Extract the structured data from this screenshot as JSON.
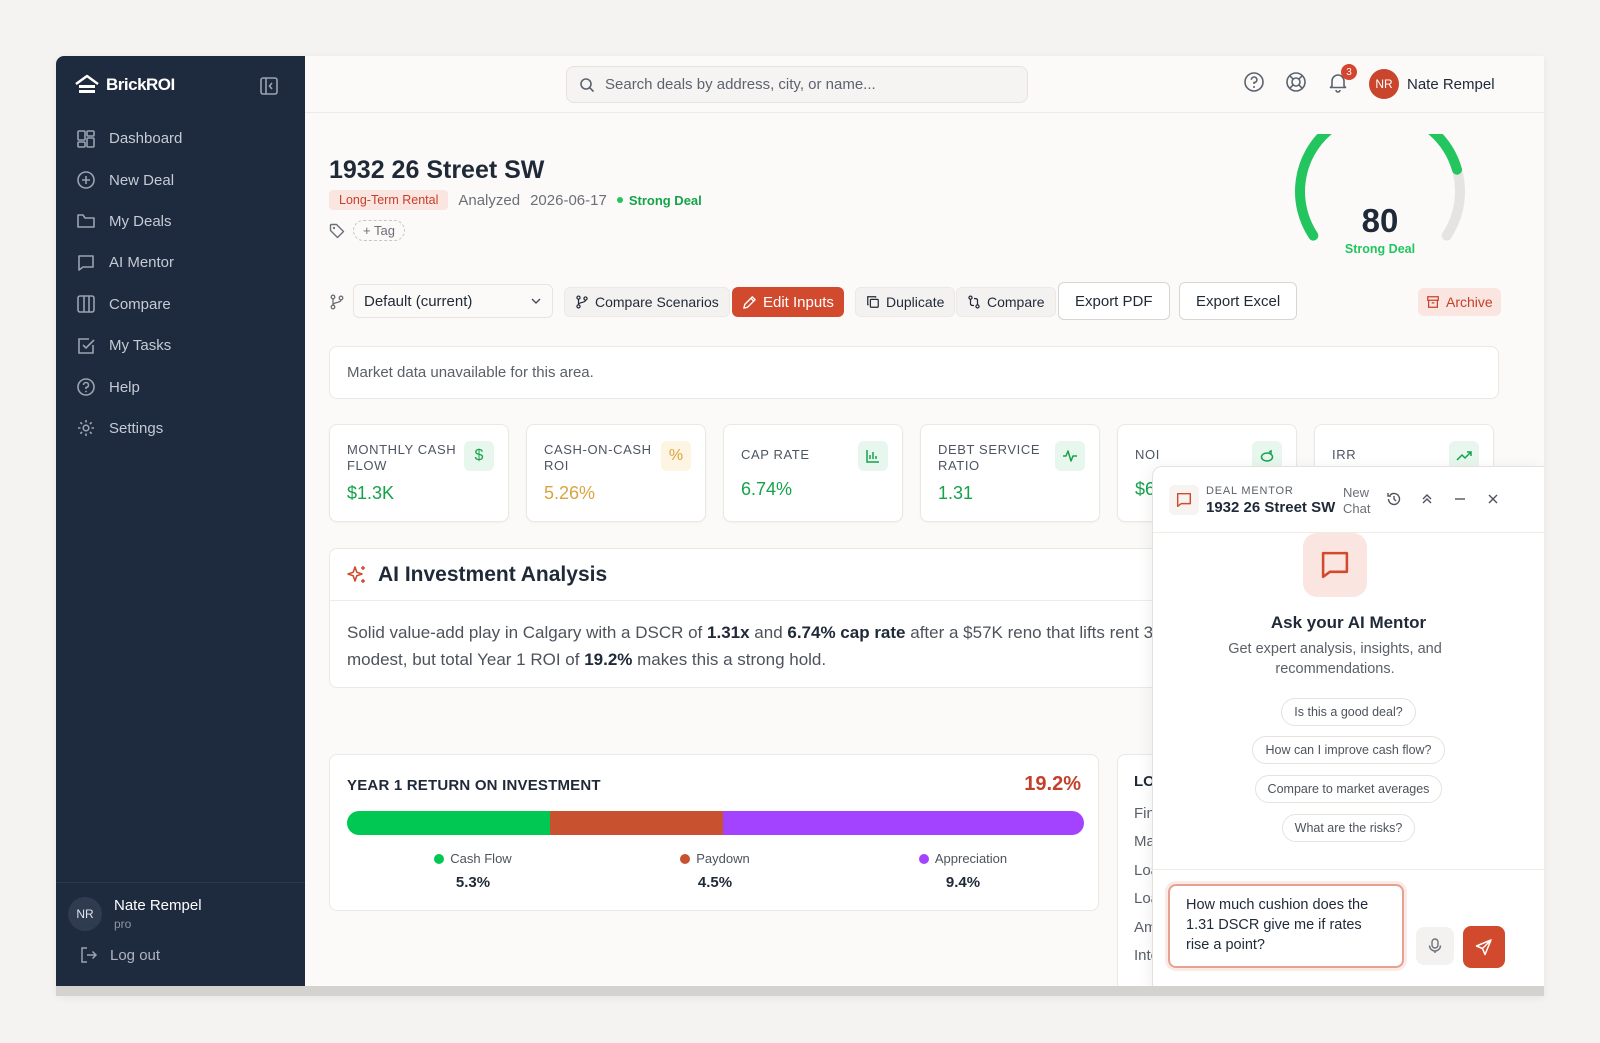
{
  "app": {
    "brand": "BrickROI"
  },
  "sidebar": {
    "items": [
      {
        "label": "Dashboard",
        "icon": "dashboard-icon"
      },
      {
        "label": "New Deal",
        "icon": "plus-circle-icon"
      },
      {
        "label": "My Deals",
        "icon": "folder-icon"
      },
      {
        "label": "AI Mentor",
        "icon": "chat-icon"
      },
      {
        "label": "Compare",
        "icon": "columns-icon"
      },
      {
        "label": "My Tasks",
        "icon": "checkbox-icon"
      },
      {
        "label": "Help",
        "icon": "help-icon"
      },
      {
        "label": "Settings",
        "icon": "gear-icon"
      }
    ],
    "user": {
      "initials": "NR",
      "name": "Nate Rempel",
      "plan": "pro"
    },
    "logout": "Log out"
  },
  "topbar": {
    "search_placeholder": "Search deals by address, city, or name...",
    "notifications": "3",
    "user_initials": "NR",
    "user_name": "Nate Rempel"
  },
  "deal": {
    "title": "1932 26 Street SW",
    "strategy": "Long-Term Rental",
    "analyzed_label": "Analyzed",
    "analyzed_date": "2026-06-17",
    "status": "Strong Deal",
    "add_tag": "+ Tag"
  },
  "score": {
    "value": "80",
    "label": "Strong Deal",
    "fraction": 0.8
  },
  "toolbar": {
    "scenario": "Default (current)",
    "compare_scenarios": "Compare Scenarios",
    "edit_inputs": "Edit Inputs",
    "duplicate": "Duplicate",
    "compare": "Compare",
    "export_pdf": "Export PDF",
    "export_excel": "Export Excel",
    "archive": "Archive"
  },
  "market": {
    "message": "Market data unavailable for this area."
  },
  "metrics": [
    {
      "label": "MONTHLY CASH FLOW",
      "value": "$1.3K",
      "color": "#15a34a",
      "icon": "$"
    },
    {
      "label": "CASH-ON-CASH ROI",
      "value": "5.26%",
      "color": "#d9a441",
      "icon": "%"
    },
    {
      "label": "CAP RATE",
      "value": "6.74%",
      "color": "#15a34a",
      "icon": "bar-chart-icon"
    },
    {
      "label": "DEBT SERVICE RATIO",
      "value": "1.31",
      "color": "#15a34a",
      "icon": "pulse-icon"
    },
    {
      "label": "NOI",
      "value": "$6",
      "color": "#15a34a",
      "icon": "piggy-icon"
    },
    {
      "label": "IRR",
      "value": "",
      "color": "#15a34a",
      "icon": "trend-up-icon"
    }
  ],
  "analysis": {
    "title": "AI Investment Analysis",
    "line1": {
      "a": "Solid value-add play in Calgary with a DSCR of ",
      "b": "1.31x",
      "c": " and ",
      "d": "6.74% cap rate",
      "e": " after a $57K reno that lifts rent 3"
    },
    "line2": {
      "a": "modest, but total Year 1 ROI of ",
      "b": "19.2%",
      "c": " makes this a strong hold."
    }
  },
  "roi": {
    "title": "YEAR 1 RETURN ON INVESTMENT",
    "total": "19.2%",
    "segments": [
      {
        "name": "Cash Flow",
        "value": "5.3%",
        "pct": 5.3,
        "color": "#00c853"
      },
      {
        "name": "Paydown",
        "value": "4.5%",
        "pct": 4.5,
        "color": "#c8512f"
      },
      {
        "name": "Appreciation",
        "value": "9.4%",
        "pct": 9.4,
        "color": "#a343ff"
      }
    ]
  },
  "loan": {
    "title": "LOA",
    "rows": [
      "Fina",
      "Ma",
      "Loa",
      "Loa",
      "Am",
      "Inte"
    ]
  },
  "mentor": {
    "kicker": "DEAL MENTOR",
    "title": "1932 26 Street SW",
    "new_chat_1": "New",
    "new_chat_2": "Chat",
    "ask": "Ask your AI Mentor",
    "sub": "Get expert analysis, insights, and recommendations.",
    "suggestions": [
      "Is this a good deal?",
      "How can I improve cash flow?",
      "Compare to market averages",
      "What are the risks?"
    ],
    "input_value": "How much cushion does the 1.31 DSCR give me if rates rise a point?"
  }
}
